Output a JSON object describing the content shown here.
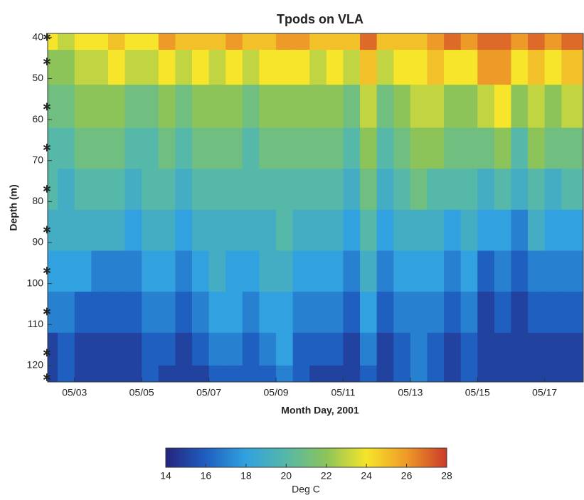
{
  "chart_data": {
    "type": "heatmap",
    "title": "Tpods on VLA",
    "x_label": "Month Day, 2001",
    "y_label": "Depth (m)",
    "colorbar_label": "Deg C",
    "x": [
      2.25,
      2.75,
      3.25,
      3.75,
      4.25,
      4.75,
      5.25,
      5.75,
      6.25,
      6.75,
      7.25,
      7.75,
      8.25,
      8.75,
      9.25,
      9.75,
      10.25,
      10.75,
      11.25,
      11.75,
      12.25,
      12.75,
      13.25,
      13.75,
      14.25,
      14.75,
      15.25,
      15.75,
      16.25,
      16.75,
      17.25,
      17.75
    ],
    "y": [
      40,
      46,
      57,
      67,
      77,
      87,
      97,
      107,
      117,
      123
    ],
    "z": [
      [
        24,
        22,
        21,
        20,
        20,
        19,
        18,
        17,
        15,
        15
      ],
      [
        23,
        22,
        21,
        20,
        19,
        19,
        18,
        17,
        16,
        16
      ],
      [
        24,
        23,
        22,
        21,
        20,
        19,
        18,
        16,
        15,
        15
      ],
      [
        24,
        23,
        22,
        21,
        20,
        19,
        17,
        16,
        15,
        15
      ],
      [
        25,
        24,
        22,
        21,
        20,
        19,
        17,
        16,
        15,
        15
      ],
      [
        24,
        23,
        21,
        20,
        19,
        18,
        17,
        16,
        15,
        15
      ],
      [
        24,
        23,
        21,
        20,
        20,
        19,
        18,
        17,
        16,
        16
      ],
      [
        26,
        24,
        22,
        21,
        20,
        19,
        18,
        17,
        16,
        15
      ],
      [
        25,
        23,
        21,
        20,
        19,
        18,
        17,
        16,
        15,
        15
      ],
      [
        25,
        24,
        22,
        21,
        20,
        19,
        18,
        17,
        16,
        15
      ],
      [
        25,
        23,
        22,
        21,
        20,
        19,
        19,
        18,
        17,
        16
      ],
      [
        26,
        24,
        22,
        21,
        20,
        19,
        18,
        18,
        17,
        16
      ],
      [
        25,
        23,
        21,
        20,
        20,
        19,
        18,
        17,
        16,
        16
      ],
      [
        25,
        24,
        22,
        21,
        20,
        19,
        19,
        18,
        17,
        16
      ],
      [
        26,
        24,
        22,
        21,
        20,
        20,
        19,
        18,
        18,
        17
      ],
      [
        26,
        24,
        22,
        21,
        20,
        19,
        18,
        17,
        16,
        16
      ],
      [
        25,
        23,
        22,
        21,
        20,
        19,
        18,
        17,
        16,
        15
      ],
      [
        25,
        24,
        22,
        21,
        20,
        19,
        18,
        17,
        16,
        15
      ],
      [
        25,
        23,
        21,
        20,
        19,
        18,
        17,
        16,
        15,
        15
      ],
      [
        27,
        25,
        23,
        22,
        21,
        20,
        19,
        18,
        17,
        16
      ],
      [
        25,
        23,
        21,
        20,
        19,
        18,
        17,
        16,
        15,
        15
      ],
      [
        25,
        24,
        22,
        21,
        20,
        19,
        18,
        17,
        16,
        16
      ],
      [
        25,
        24,
        23,
        22,
        21,
        19,
        18,
        17,
        17,
        17
      ],
      [
        26,
        25,
        23,
        22,
        20,
        19,
        18,
        17,
        16,
        16
      ],
      [
        27,
        24,
        22,
        21,
        20,
        18,
        17,
        16,
        15,
        15
      ],
      [
        26,
        24,
        22,
        21,
        20,
        19,
        18,
        17,
        16,
        16
      ],
      [
        27,
        26,
        23,
        21,
        19,
        18,
        16,
        15,
        15,
        15
      ],
      [
        27,
        26,
        24,
        22,
        20,
        18,
        17,
        16,
        15,
        15
      ],
      [
        26,
        24,
        22,
        20,
        19,
        17,
        16,
        15,
        15,
        15
      ],
      [
        27,
        25,
        23,
        22,
        20,
        19,
        17,
        16,
        15,
        15
      ],
      [
        26,
        24,
        22,
        21,
        19,
        18,
        17,
        16,
        15,
        15
      ],
      [
        27,
        25,
        23,
        21,
        20,
        18,
        17,
        16,
        15,
        15
      ]
    ],
    "xlim": [
      2.2,
      18.15
    ],
    "xticks": [
      {
        "value": 3,
        "label": "05/03"
      },
      {
        "value": 5,
        "label": "05/05"
      },
      {
        "value": 7,
        "label": "05/07"
      },
      {
        "value": 9,
        "label": "05/09"
      },
      {
        "value": 11,
        "label": "05/11"
      },
      {
        "value": 13,
        "label": "05/13"
      },
      {
        "value": 15,
        "label": "05/15"
      },
      {
        "value": 17,
        "label": "05/17"
      }
    ],
    "ylim": [
      39,
      124
    ],
    "yticks": [
      40,
      50,
      60,
      70,
      80,
      90,
      100,
      110,
      120
    ],
    "y_reversed": true,
    "clim": [
      14,
      28
    ],
    "cticks": [
      14,
      16,
      18,
      20,
      22,
      24,
      26,
      28
    ],
    "colormap": [
      "#25247e",
      "#1f5fc0",
      "#31a2df",
      "#56b8a8",
      "#8cc45a",
      "#f6e52a",
      "#ee9a28",
      "#cc3a2a"
    ]
  }
}
